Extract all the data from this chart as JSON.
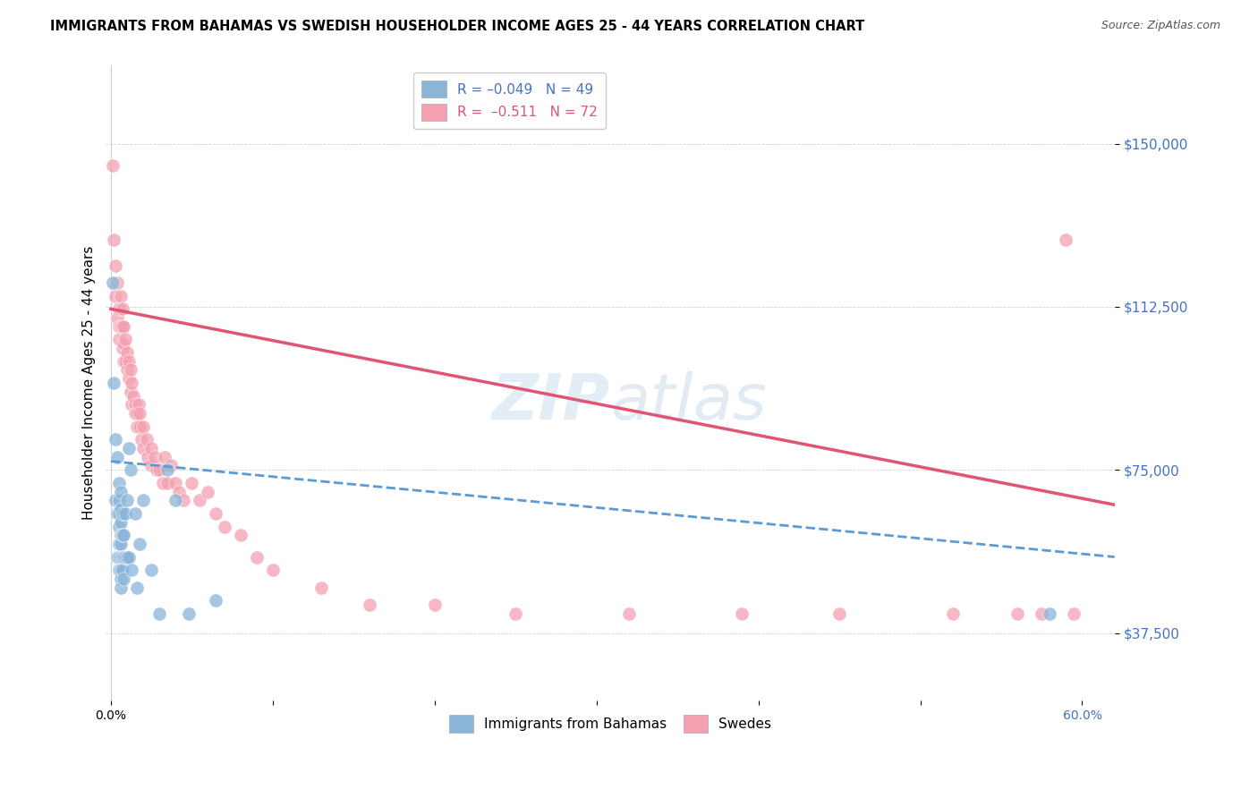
{
  "title": "IMMIGRANTS FROM BAHAMAS VS SWEDISH HOUSEHOLDER INCOME AGES 25 - 44 YEARS CORRELATION CHART",
  "source": "Source: ZipAtlas.com",
  "ylabel": "Householder Income Ages 25 - 44 years",
  "y_tick_labels": [
    "$37,500",
    "$75,000",
    "$112,500",
    "$150,000"
  ],
  "y_tick_values": [
    37500,
    75000,
    112500,
    150000
  ],
  "ylim": [
    22000,
    168000
  ],
  "xlim": [
    -0.003,
    0.62
  ],
  "color_blue": "#8ab4d8",
  "color_pink": "#f4a0b0",
  "line_blue": "#5b9bd5",
  "line_pink": "#e05575",
  "watermark": "ZipAtlas",
  "blue_scatter_x": [
    0.001,
    0.002,
    0.003,
    0.003,
    0.004,
    0.004,
    0.004,
    0.005,
    0.005,
    0.005,
    0.005,
    0.005,
    0.005,
    0.005,
    0.006,
    0.006,
    0.006,
    0.006,
    0.006,
    0.006,
    0.006,
    0.006,
    0.006,
    0.007,
    0.007,
    0.007,
    0.007,
    0.008,
    0.008,
    0.008,
    0.009,
    0.009,
    0.01,
    0.01,
    0.011,
    0.011,
    0.012,
    0.013,
    0.015,
    0.016,
    0.018,
    0.02,
    0.025,
    0.03,
    0.035,
    0.04,
    0.048,
    0.065,
    0.58
  ],
  "blue_scatter_y": [
    118000,
    95000,
    82000,
    68000,
    78000,
    65000,
    55000,
    72000,
    68000,
    65000,
    62000,
    58000,
    55000,
    52000,
    70000,
    66000,
    63000,
    60000,
    58000,
    55000,
    52000,
    50000,
    48000,
    65000,
    60000,
    55000,
    52000,
    60000,
    55000,
    50000,
    65000,
    55000,
    68000,
    55000,
    80000,
    55000,
    75000,
    52000,
    65000,
    48000,
    58000,
    68000,
    52000,
    42000,
    75000,
    68000,
    42000,
    45000,
    42000
  ],
  "pink_scatter_x": [
    0.001,
    0.002,
    0.003,
    0.003,
    0.004,
    0.004,
    0.005,
    0.005,
    0.005,
    0.006,
    0.006,
    0.007,
    0.007,
    0.007,
    0.008,
    0.008,
    0.008,
    0.009,
    0.009,
    0.01,
    0.01,
    0.011,
    0.011,
    0.012,
    0.012,
    0.013,
    0.013,
    0.014,
    0.015,
    0.015,
    0.016,
    0.016,
    0.017,
    0.018,
    0.018,
    0.019,
    0.02,
    0.02,
    0.022,
    0.023,
    0.025,
    0.025,
    0.027,
    0.028,
    0.03,
    0.032,
    0.033,
    0.035,
    0.037,
    0.04,
    0.042,
    0.045,
    0.05,
    0.055,
    0.06,
    0.065,
    0.07,
    0.08,
    0.09,
    0.1,
    0.13,
    0.16,
    0.2,
    0.25,
    0.32,
    0.39,
    0.45,
    0.52,
    0.56,
    0.575,
    0.59,
    0.595
  ],
  "pink_scatter_y": [
    145000,
    128000,
    122000,
    115000,
    118000,
    110000,
    112000,
    108000,
    105000,
    115000,
    108000,
    112000,
    108000,
    103000,
    108000,
    104000,
    100000,
    105000,
    100000,
    102000,
    98000,
    100000,
    96000,
    98000,
    93000,
    95000,
    90000,
    92000,
    90000,
    88000,
    88000,
    85000,
    90000,
    88000,
    85000,
    82000,
    85000,
    80000,
    82000,
    78000,
    80000,
    76000,
    78000,
    75000,
    75000,
    72000,
    78000,
    72000,
    76000,
    72000,
    70000,
    68000,
    72000,
    68000,
    70000,
    65000,
    62000,
    60000,
    55000,
    52000,
    48000,
    44000,
    44000,
    42000,
    42000,
    42000,
    42000,
    42000,
    42000,
    42000,
    128000,
    42000
  ],
  "blue_trend_x0": 0.0,
  "blue_trend_x1": 0.62,
  "blue_trend_y0": 77000,
  "blue_trend_y1": 55000,
  "pink_trend_x0": 0.0,
  "pink_trend_x1": 0.62,
  "pink_trend_y0": 112000,
  "pink_trend_y1": 67000,
  "x_ticks": [
    0.0,
    0.1,
    0.2,
    0.3,
    0.4,
    0.5,
    0.6
  ],
  "x_tick_labels_visible": [
    "0.0%",
    "",
    "",
    "",
    "",
    "",
    "60.0%"
  ]
}
